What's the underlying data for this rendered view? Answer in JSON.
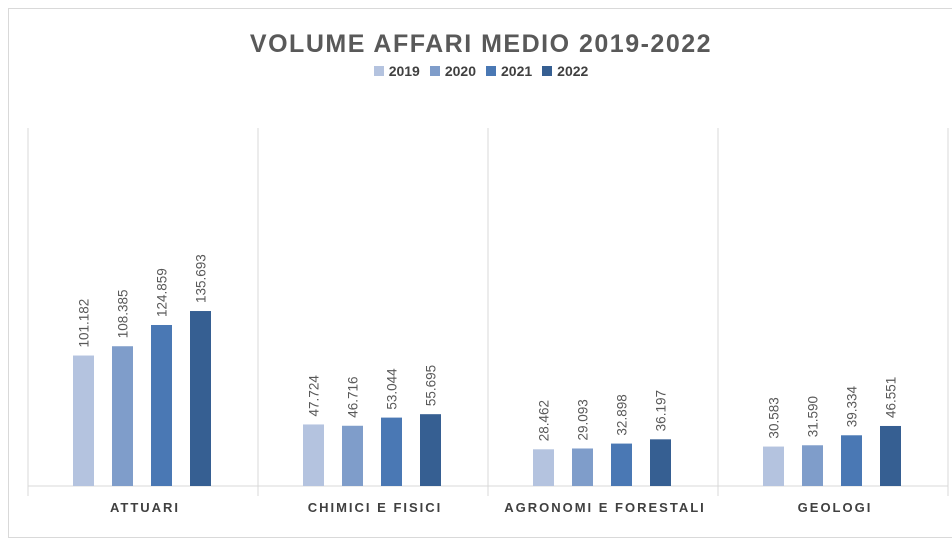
{
  "chart_data": {
    "type": "bar",
    "title": "VOLUME AFFARI MEDIO 2019-2022",
    "categories": [
      "ATTUARI",
      "CHIMICI E FISICI",
      "AGRONOMI E FORESTALI",
      "GEOLOGI"
    ],
    "series": [
      {
        "name": "2019",
        "color": "#b4c3df",
        "values": [
          101.182,
          47.724,
          28.462,
          30.583
        ],
        "labels": [
          "101.182",
          "47.724",
          "28.462",
          "30.583"
        ]
      },
      {
        "name": "2020",
        "color": "#7f9dca",
        "values": [
          108.385,
          46.716,
          29.093,
          31.59
        ],
        "labels": [
          "108.385",
          "46.716",
          "29.093",
          "31.590"
        ]
      },
      {
        "name": "2021",
        "color": "#4a78b4",
        "values": [
          124.859,
          53.044,
          32.898,
          39.334
        ],
        "labels": [
          "124.859",
          "53.044",
          "32.898",
          "39.334"
        ]
      },
      {
        "name": "2022",
        "color": "#365f92",
        "values": [
          135.693,
          55.695,
          36.197,
          46.551
        ],
        "labels": [
          "135.693",
          "55.695",
          "36.197",
          "46.551"
        ]
      }
    ],
    "ylim": [
      0,
      200
    ],
    "legend": "top"
  }
}
